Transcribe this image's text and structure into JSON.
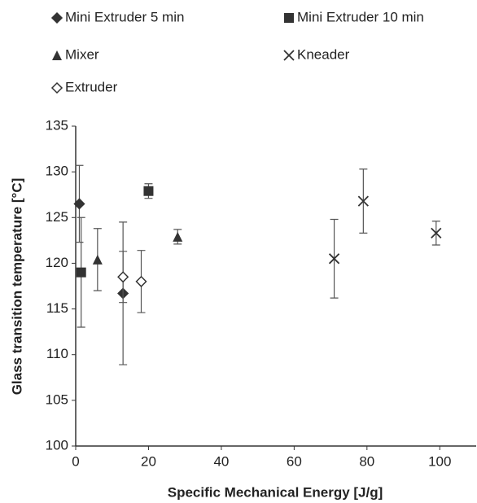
{
  "chart_data": {
    "type": "scatter",
    "x_label": "Specific Mechanical Energy  [J/g]",
    "y_label": "Glass transition temperature [°C]",
    "xlim": [
      0,
      110
    ],
    "ylim": [
      100,
      135
    ],
    "xticks": [
      0,
      20,
      40,
      60,
      80,
      100
    ],
    "yticks": [
      100,
      105,
      110,
      115,
      120,
      125,
      130,
      135
    ],
    "grid": false,
    "series": [
      {
        "name": "Mini Extruder 5 min",
        "color": "#333333",
        "marker": "diamond",
        "x": [
          1,
          13
        ],
        "values": [
          126.5,
          116.7
        ],
        "errors": [
          4.2,
          7.8
        ]
      },
      {
        "name": "Mini Extruder 10 min",
        "color": "#333333",
        "marker": "square",
        "x": [
          1.5,
          20
        ],
        "values": [
          119,
          127.9
        ],
        "errors": [
          6,
          0.8
        ]
      },
      {
        "name": "Mixer",
        "color": "#333333",
        "marker": "triangle",
        "x": [
          6,
          28
        ],
        "values": [
          120.4,
          122.9
        ],
        "errors": [
          3.4,
          0.8
        ]
      },
      {
        "name": "Kneader",
        "color": "#333333",
        "marker": "x",
        "x": [
          71,
          79,
          99
        ],
        "values": [
          120.5,
          126.8,
          123.3
        ],
        "errors": [
          4.3,
          3.5,
          1.3
        ]
      },
      {
        "name": "Extruder",
        "color": "#333333",
        "marker": "open-diamond",
        "x": [
          13,
          18
        ],
        "values": [
          118.5,
          118
        ],
        "errors": [
          2.8,
          3.4
        ]
      }
    ]
  }
}
